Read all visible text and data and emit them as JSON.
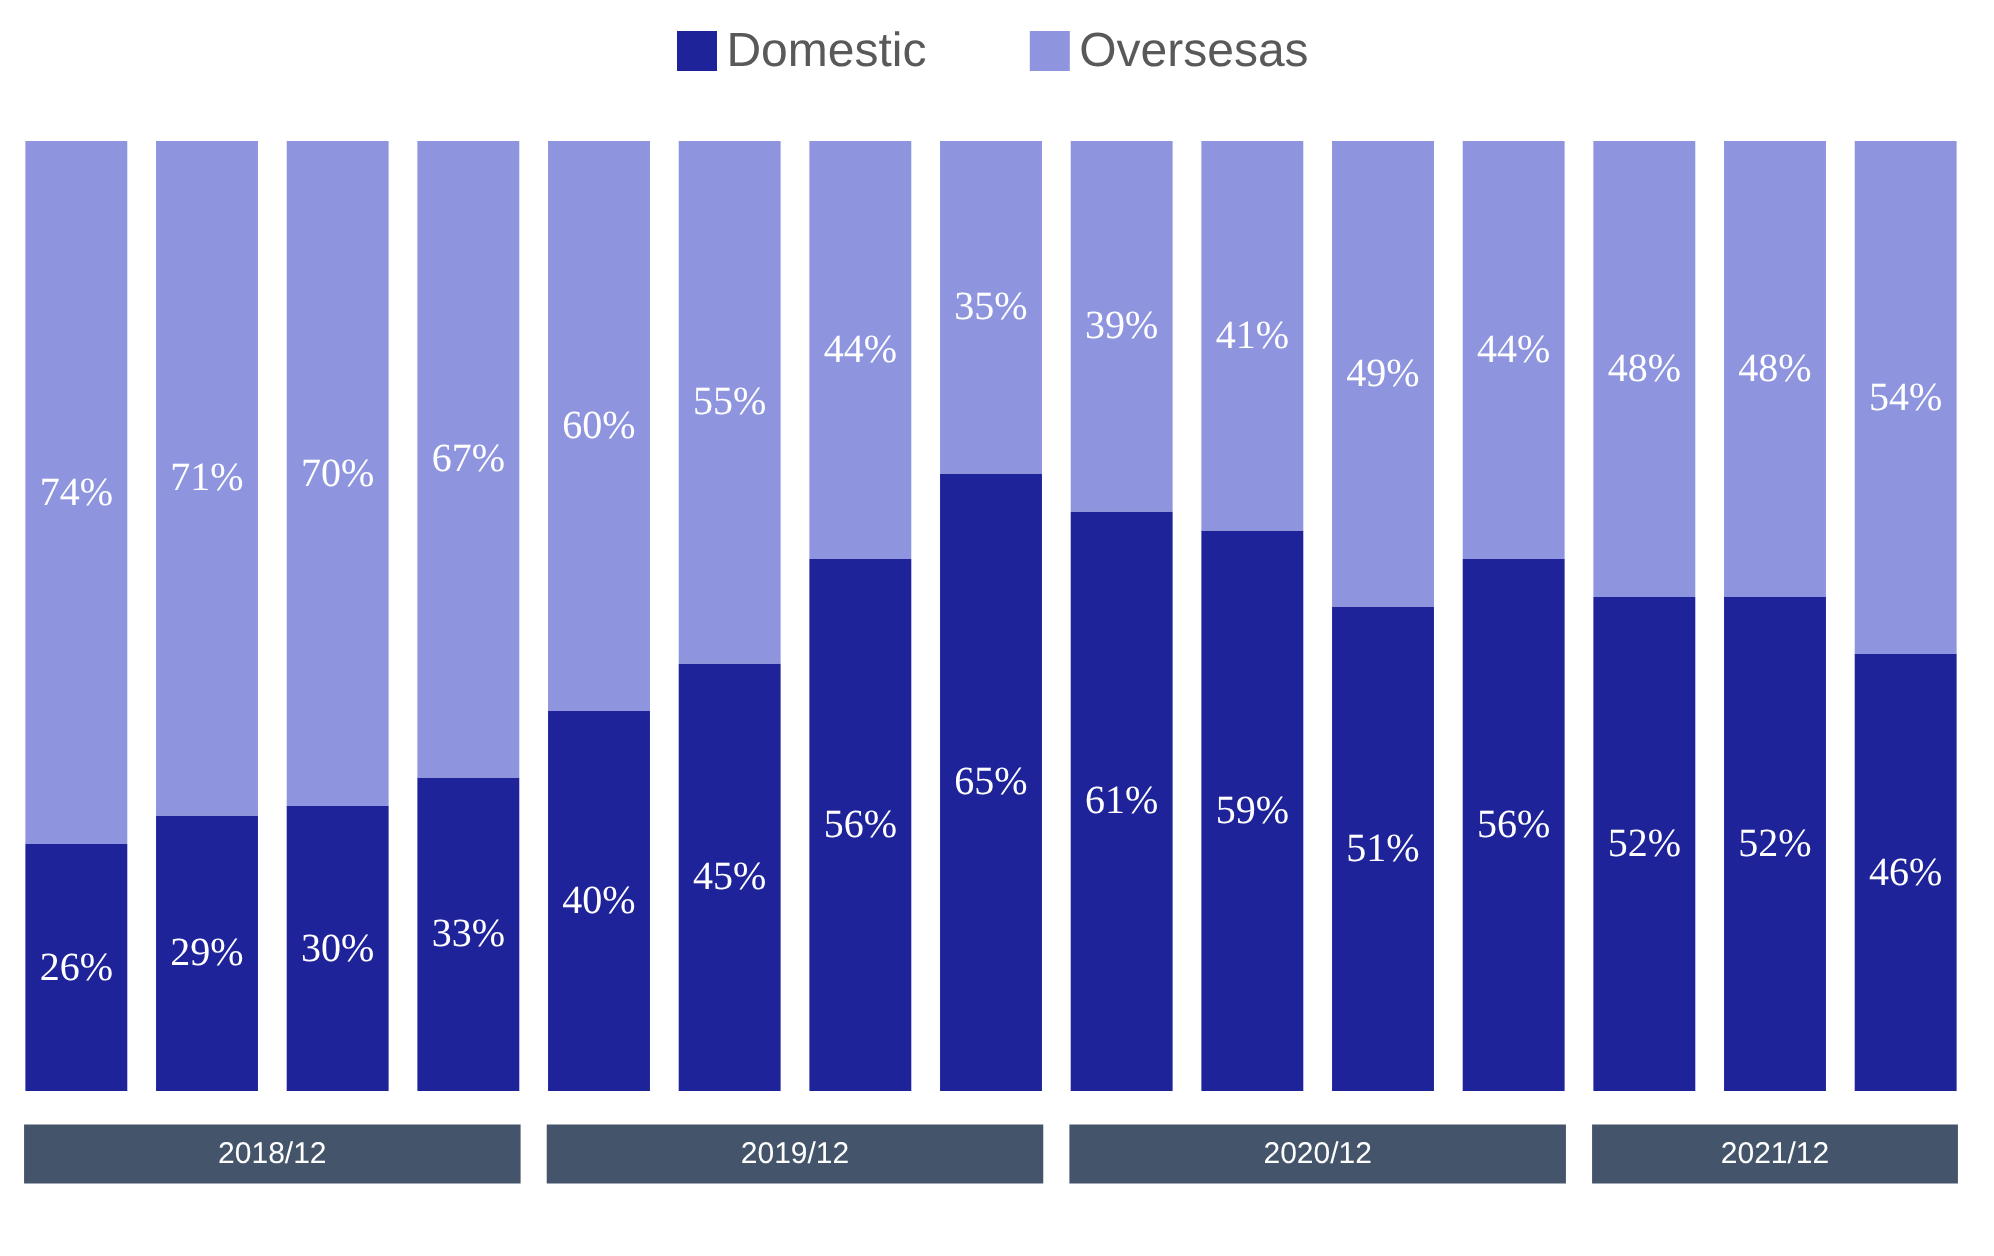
{
  "chart_data": {
    "type": "bar",
    "stacked": true,
    "categories": [
      null,
      null,
      null,
      null,
      null,
      null,
      null,
      null,
      null,
      null,
      null,
      null,
      null,
      null,
      null
    ],
    "series": [
      {
        "name": "Domestic",
        "color": "#1f239a",
        "values": [
          26,
          29,
          30,
          33,
          40,
          45,
          56,
          65,
          61,
          59,
          51,
          56,
          52,
          52,
          46
        ],
        "value_labels": [
          "26%",
          "29%",
          "30%",
          "33%",
          "40%",
          "45%",
          "56%",
          "65%",
          "61%",
          "59%",
          "51%",
          "56%",
          "52%",
          "52%",
          "46%"
        ]
      },
      {
        "name": "Oversesas",
        "color": "#8e95de",
        "values": [
          74,
          71,
          70,
          67,
          60,
          55,
          44,
          35,
          39,
          41,
          49,
          44,
          48,
          48,
          54
        ],
        "value_labels": [
          "74%",
          "71%",
          "70%",
          "67%",
          "60%",
          "55%",
          "44%",
          "35%",
          "39%",
          "41%",
          "49%",
          "44%",
          "48%",
          "48%",
          "54%"
        ]
      }
    ],
    "legend": "top",
    "annotations": [
      "2018/12",
      "2019/12",
      "2020/12",
      "2021/12"
    ]
  }
}
